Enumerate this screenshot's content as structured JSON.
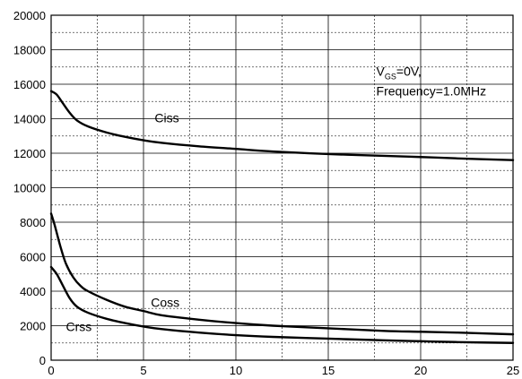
{
  "chart_data": {
    "type": "line",
    "title": "",
    "xlabel": "",
    "ylabel": "",
    "xlim": [
      0,
      25
    ],
    "ylim": [
      0,
      20000
    ],
    "x_ticks": [
      0,
      5,
      10,
      15,
      20,
      25
    ],
    "y_ticks": [
      0,
      2000,
      4000,
      6000,
      8000,
      10000,
      12000,
      14000,
      16000,
      18000,
      20000
    ],
    "grid": true,
    "annotation": {
      "main": "V",
      "sub": "GS",
      "rest": "=0V,",
      "line2": "Frequency=1.0MHz"
    },
    "series": [
      {
        "name": "Ciss",
        "x": [
          0,
          0.3,
          0.6,
          1.0,
          1.4,
          2,
          3,
          4,
          5,
          6,
          8,
          10,
          12,
          15,
          18,
          20,
          22,
          25
        ],
        "y": [
          15600,
          15400,
          14950,
          14350,
          13900,
          13550,
          13200,
          12950,
          12750,
          12600,
          12400,
          12250,
          12100,
          11950,
          11850,
          11780,
          11700,
          11600
        ]
      },
      {
        "name": "Coss",
        "x": [
          0,
          0.2,
          0.5,
          0.8,
          1.2,
          1.6,
          2,
          3,
          4,
          5,
          6,
          8,
          10,
          12,
          15,
          18,
          20,
          22,
          25
        ],
        "y": [
          8500,
          7800,
          6600,
          5600,
          4800,
          4300,
          4000,
          3500,
          3100,
          2850,
          2600,
          2350,
          2150,
          2000,
          1850,
          1700,
          1650,
          1600,
          1500
        ]
      },
      {
        "name": "Crss",
        "x": [
          0,
          0.3,
          0.6,
          1.0,
          1.4,
          2,
          3,
          4,
          5,
          6,
          8,
          10,
          12,
          15,
          18,
          20,
          22,
          25
        ],
        "y": [
          5400,
          5000,
          4400,
          3600,
          3100,
          2750,
          2400,
          2150,
          1950,
          1800,
          1600,
          1450,
          1350,
          1250,
          1150,
          1100,
          1050,
          1000
        ]
      }
    ],
    "series_label_positions": [
      {
        "name": "Ciss",
        "x": 5.6,
        "y": 13800
      },
      {
        "name": "Coss",
        "x": 5.4,
        "y": 3100
      },
      {
        "name": "Crss",
        "x": 0.8,
        "y": 1700
      }
    ],
    "annotation_position": {
      "x": 17.6,
      "y": 16500
    }
  }
}
